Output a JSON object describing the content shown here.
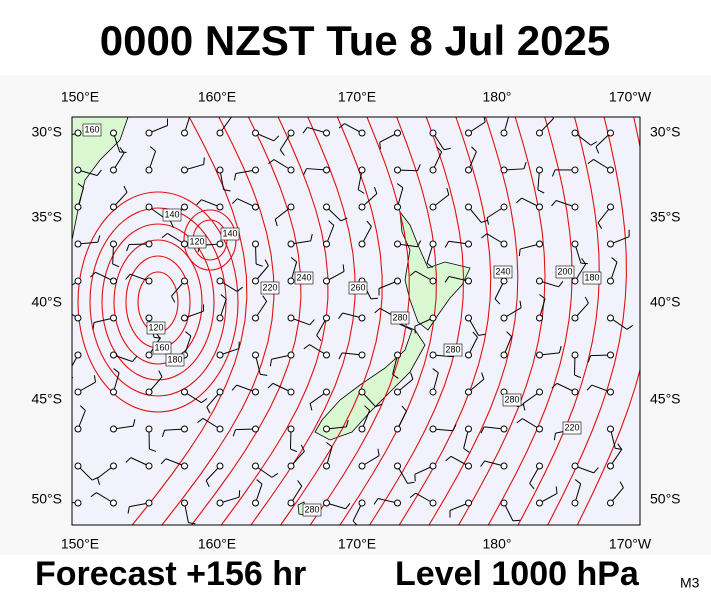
{
  "header": {
    "title": "0000 NZST Tue 8 Jul 2025"
  },
  "map": {
    "lon_labels": [
      "150°E",
      "160°E",
      "170°E",
      "180°",
      "170°W"
    ],
    "lat_labels": [
      "30°S",
      "35°S",
      "40°S",
      "45°S",
      "50°S"
    ],
    "contour_labels": [
      "160",
      "140",
      "120",
      "140",
      "120",
      "160",
      "180",
      "220",
      "240",
      "260",
      "280",
      "280",
      "280",
      "240",
      "200",
      "180",
      "220",
      "280"
    ]
  },
  "footer": {
    "forecast": "Forecast +156 hr",
    "level": "Level 1000 hPa",
    "model": "M3"
  }
}
